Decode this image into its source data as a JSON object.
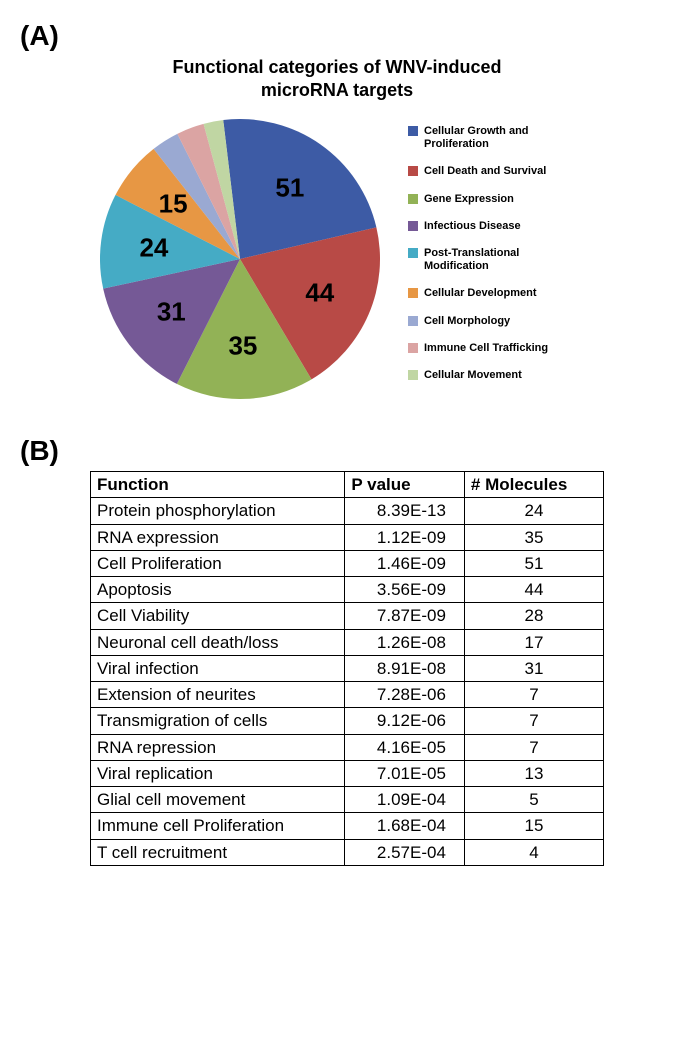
{
  "panelA": {
    "label": "(A)",
    "title_l1": "Functional categories of WNV-induced",
    "title_l2": "microRNA targets",
    "pie": {
      "type": "pie",
      "background_color": "#ffffff",
      "slice_label_fontsize": 26,
      "legend_fontsize": 11,
      "title_fontsize": 18,
      "slices": [
        {
          "label": "Cellular Growth and Proliferation",
          "value": 51,
          "color": "#3d5ba5",
          "show_value": true
        },
        {
          "label": "Cell Death and Survival",
          "value": 44,
          "color": "#b84a46",
          "show_value": true
        },
        {
          "label": "Gene Expression",
          "value": 35,
          "color": "#92b256",
          "show_value": true
        },
        {
          "label": "Infectious Disease",
          "value": 31,
          "color": "#755996",
          "show_value": true
        },
        {
          "label": "Post-Translational Modification",
          "value": 24,
          "color": "#45abc5",
          "show_value": true
        },
        {
          "label": "Cellular Development",
          "value": 15,
          "color": "#e79744",
          "show_value": true
        },
        {
          "label": "Cell Morphology",
          "value": 7,
          "color": "#9aa9d2",
          "show_value": false
        },
        {
          "label": "Immune Cell Trafficking",
          "value": 7,
          "color": "#dba4a3",
          "show_value": false
        },
        {
          "label": "Cellular Movement",
          "value": 5,
          "color": "#c0d6a3",
          "show_value": false
        }
      ]
    }
  },
  "panelB": {
    "label": "(B)",
    "table": {
      "type": "table",
      "border_color": "#000000",
      "header_fontweight": 700,
      "cell_fontsize": 17,
      "columns": [
        "Function",
        "P value",
        "# Molecules"
      ],
      "rows": [
        [
          "Protein phosphorylation",
          "8.39E-13",
          "24"
        ],
        [
          "RNA expression",
          "1.12E-09",
          "35"
        ],
        [
          "Cell Proliferation",
          "1.46E-09",
          "51"
        ],
        [
          "Apoptosis",
          "3.56E-09",
          "44"
        ],
        [
          "Cell Viability",
          "7.87E-09",
          "28"
        ],
        [
          "Neuronal cell death/loss",
          "1.26E-08",
          "17"
        ],
        [
          "Viral infection",
          "8.91E-08",
          "31"
        ],
        [
          "Extension of neurites",
          "7.28E-06",
          "7"
        ],
        [
          "Transmigration of cells",
          "9.12E-06",
          "7"
        ],
        [
          "RNA repression",
          "4.16E-05",
          "7"
        ],
        [
          "Viral replication",
          "7.01E-05",
          "13"
        ],
        [
          "Glial cell movement",
          "1.09E-04",
          "5"
        ],
        [
          "Immune cell Proliferation",
          "1.68E-04",
          "15"
        ],
        [
          "T cell recruitment",
          "2.57E-04",
          "4"
        ]
      ]
    }
  }
}
